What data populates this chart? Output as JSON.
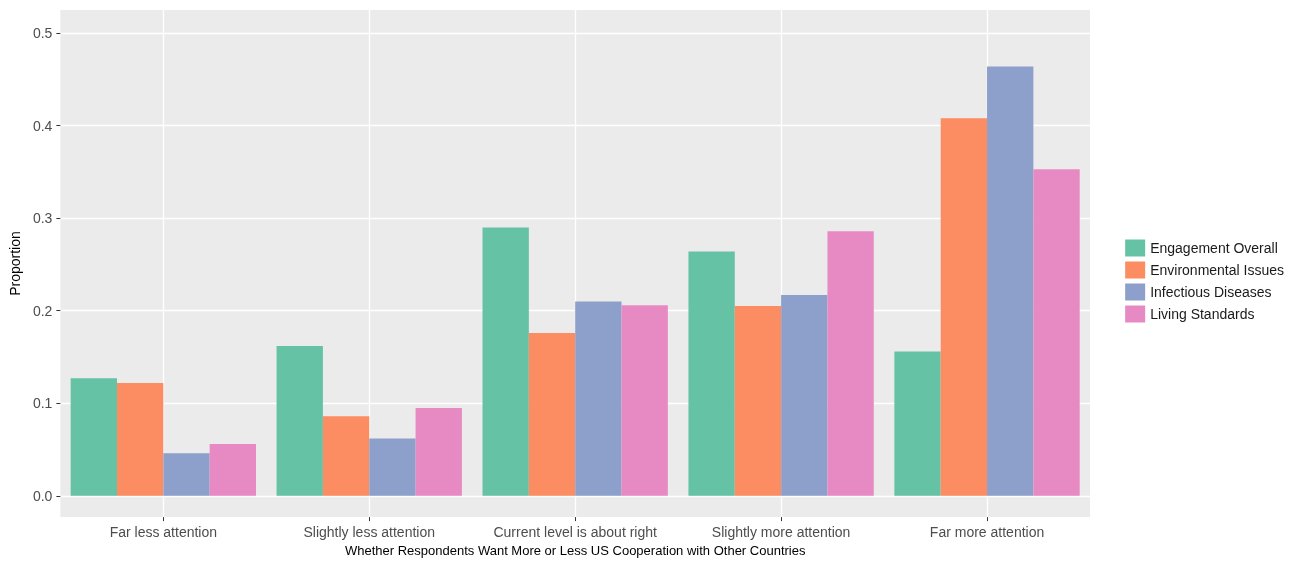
{
  "chart_data": {
    "type": "bar",
    "xlabel": "Whether Respondents Want More or Less US Cooperation with Other Countries",
    "ylabel": "Proportion",
    "categories": [
      "Far less attention",
      "Slightly less attention",
      "Current level is about right",
      "Slightly more attention",
      "Far more attention"
    ],
    "series": [
      {
        "name": "Engagement Overall",
        "color": "#66c2a5",
        "values": [
          0.127,
          0.162,
          0.29,
          0.264,
          0.156
        ]
      },
      {
        "name": "Environmental Issues",
        "color": "#fc8d62",
        "values": [
          0.122,
          0.086,
          0.176,
          0.205,
          0.408
        ]
      },
      {
        "name": "Infectious Diseases",
        "color": "#8da0cb",
        "values": [
          0.046,
          0.062,
          0.21,
          0.217,
          0.464
        ]
      },
      {
        "name": "Living Standards",
        "color": "#e78ac3",
        "values": [
          0.056,
          0.095,
          0.206,
          0.286,
          0.353
        ]
      }
    ],
    "ylim": [
      -0.023,
      0.525
    ],
    "yticks": [
      {
        "value": 0,
        "label": "0.0"
      },
      {
        "value": 0.1,
        "label": "0.1"
      },
      {
        "value": 0.2,
        "label": "0.2"
      },
      {
        "value": 0.3,
        "label": "0.3"
      },
      {
        "value": 0.4,
        "label": "0.4"
      },
      {
        "value": 0.5,
        "label": "0.5"
      }
    ],
    "grid": true,
    "legend": "right"
  }
}
